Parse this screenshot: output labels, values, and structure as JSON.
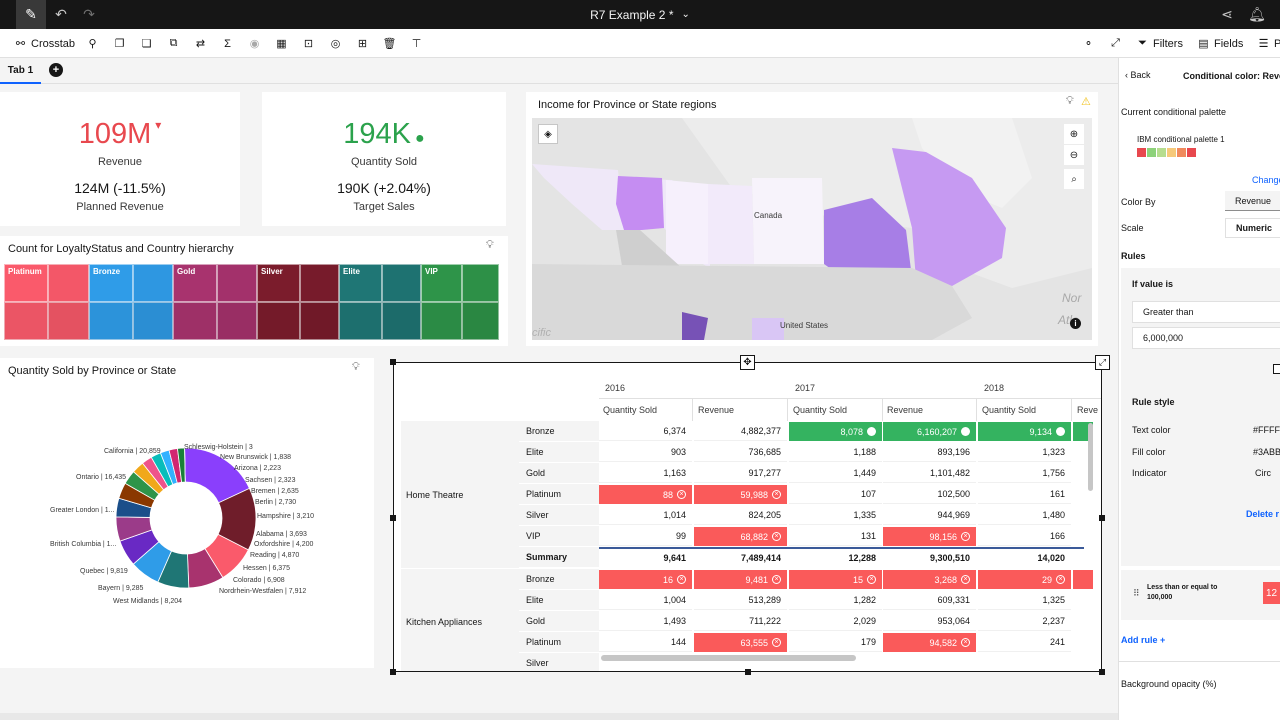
{
  "topbar": {
    "title": "R7 Example 2 *",
    "icons": [
      "edit-icon",
      "undo-icon",
      "redo-icon",
      "share-icon",
      "notification-icon"
    ]
  },
  "toolbar": {
    "crosstab_label": "Crosstab",
    "filters_label": "Filters",
    "fields_label": "Fields",
    "properties_label": "P"
  },
  "tabs": [
    {
      "label": "Tab 1"
    }
  ],
  "kpis": [
    {
      "value": "109M",
      "value_color": "#e8484e",
      "indicator": "▾",
      "label": "Revenue",
      "sub": "124M (-11.5%)",
      "sub_label": "Planned Revenue"
    },
    {
      "value": "194K",
      "value_color": "#2ba24c",
      "indicator": "●",
      "label": "Quantity Sold",
      "sub": "190K (+2.04%)",
      "sub_label": "Target Sales"
    }
  ],
  "map": {
    "title": "Income for Province or State regions",
    "labels": {
      "canada": "Canada",
      "us": "United States",
      "corner1": "Nor",
      "corner2": "Atla",
      "corner3": "cific"
    }
  },
  "treemap": {
    "title": "Count for LoyaltyStatus and Country hierarchy",
    "groups": [
      {
        "label": "Platinum",
        "color": "#fa5a6b"
      },
      {
        "label": "Bronze",
        "color": "#2f9ce8"
      },
      {
        "label": "Gold",
        "color": "#a8336e"
      },
      {
        "label": "Silver",
        "color": "#7b1c2c"
      },
      {
        "label": "Elite",
        "color": "#1f7675"
      },
      {
        "label": "VIP",
        "color": "#2e9449"
      }
    ]
  },
  "donut": {
    "title": "Quantity Sold by Province or State",
    "labels": [
      "California | 20,859",
      "Ontario | 16,435",
      "Greater London | 1...",
      "British Columbia | 1...",
      "Quebec | 9,819",
      "Bayern | 9,285",
      "West Midlands | 8,204",
      "Schleswig-Holstein | 3",
      "New Brunswick | 1,838",
      "Arizona | 2,223",
      "Sachsen | 2,323",
      "Bremen | 2,635",
      "Berlin | 2,730",
      "Hampshire | 3,210",
      "Alabama | 3,693",
      "Oxfordshire | 4,200",
      "Reading | 4,870",
      "Hessen | 6,375",
      "Colorado | 6,908",
      "Nordrhein-Westfalen | 7,912"
    ]
  },
  "chart_data": {
    "type": "pie",
    "title": "Quantity Sold by Province or State",
    "categories": [
      "California",
      "Ontario",
      "Quebec",
      "Bayern",
      "West Midlands",
      "Nordrhein-Westfalen",
      "Colorado",
      "Hessen",
      "Reading",
      "Oxfordshire",
      "Alabama",
      "Hampshire",
      "Berlin",
      "Bremen",
      "Sachsen",
      "Arizona",
      "New Brunswick",
      "Schleswig-Holstein"
    ],
    "values": [
      20859,
      16435,
      9819,
      9285,
      8204,
      7912,
      6908,
      6375,
      4870,
      4200,
      3693,
      3210,
      2730,
      2635,
      2323,
      2223,
      1838,
      3
    ]
  },
  "crosstab": {
    "years": [
      "2016",
      "2017",
      "2018"
    ],
    "measures": [
      "Quantity Sold",
      "Revenue",
      "Quantity Sold",
      "Revenue",
      "Quantity Sold",
      "Reve"
    ],
    "groups": [
      {
        "name": "Home Theatre",
        "rows": [
          {
            "label": "Bronze",
            "values": [
              "6,374",
              "4,882,377",
              "8,078",
              "6,160,207",
              "9,134"
            ],
            "styles": [
              "",
              "",
              "green",
              "green",
              "green"
            ]
          },
          {
            "label": "Elite",
            "values": [
              "903",
              "736,685",
              "1,188",
              "893,196",
              "1,323"
            ],
            "styles": [
              "",
              "",
              "",
              "",
              ""
            ]
          },
          {
            "label": "Gold",
            "values": [
              "1,163",
              "917,277",
              "1,449",
              "1,101,482",
              "1,756"
            ],
            "styles": [
              "",
              "",
              "",
              "",
              ""
            ]
          },
          {
            "label": "Platinum",
            "values": [
              "88",
              "59,988",
              "107",
              "102,500",
              "161"
            ],
            "styles": [
              "red",
              "red",
              "",
              "",
              ""
            ]
          },
          {
            "label": "Silver",
            "values": [
              "1,014",
              "824,205",
              "1,335",
              "944,969",
              "1,480"
            ],
            "styles": [
              "",
              "",
              "",
              "",
              ""
            ]
          },
          {
            "label": "VIP",
            "values": [
              "99",
              "68,882",
              "131",
              "98,156",
              "166"
            ],
            "styles": [
              "",
              "red",
              "",
              "red",
              ""
            ]
          },
          {
            "label": "Summary",
            "values": [
              "9,641",
              "7,489,414",
              "12,288",
              "9,300,510",
              "14,020"
            ],
            "styles": [
              "bold",
              "bold",
              "bold",
              "bold",
              "bold"
            ]
          }
        ]
      },
      {
        "name": "Kitchen Appliances",
        "rows": [
          {
            "label": "Bronze",
            "values": [
              "16",
              "9,481",
              "15",
              "3,268",
              "29"
            ],
            "styles": [
              "red",
              "red",
              "red",
              "red",
              "red"
            ]
          },
          {
            "label": "Elite",
            "values": [
              "1,004",
              "513,289",
              "1,282",
              "609,331",
              "1,325"
            ],
            "styles": [
              "",
              "",
              "",
              "",
              ""
            ]
          },
          {
            "label": "Gold",
            "values": [
              "1,493",
              "711,222",
              "2,029",
              "953,064",
              "2,237"
            ],
            "styles": [
              "",
              "",
              "",
              "",
              ""
            ]
          },
          {
            "label": "Platinum",
            "values": [
              "144",
              "63,555",
              "179",
              "94,582",
              "241"
            ],
            "styles": [
              "",
              "red",
              "",
              "red",
              ""
            ]
          },
          {
            "label": "Silver",
            "values": [
              "",
              "",
              "",
              "",
              ""
            ],
            "styles": [
              "",
              "",
              "",
              "",
              ""
            ]
          }
        ]
      }
    ]
  },
  "panel": {
    "back_label": "Back",
    "header": "Conditional color: Reve",
    "current_palette_label": "Current conditional palette",
    "palette_name": "IBM conditional palette 1",
    "palette_colors": [
      "#e8484e",
      "#8dd27a",
      "#b6dd8e",
      "#f6c97a",
      "#f08a5d",
      "#e8484e"
    ],
    "change_label": "Change",
    "color_by_label": "Color By",
    "color_by_value": "Revenue",
    "scale_label": "Scale",
    "scale_value": "Numeric",
    "rules_label": "Rules",
    "if_value_label": "If value is",
    "condition_value": "Greater than",
    "threshold_value": "6,000,000",
    "rule_style_label": "Rule style",
    "text_color_label": "Text color",
    "text_color_value": "#FFFF",
    "fill_color_label": "Fill color",
    "fill_color_value": "#3ABB",
    "indicator_label": "Indicator",
    "indicator_value": "Circ",
    "delete_label": "Delete r",
    "rule2_label_line1": "Less than or equal to",
    "rule2_label_line2": "100,000",
    "rule2_swatch": "12",
    "add_rule_label": "Add rule",
    "bg_opacity_label": "Background opacity (%)"
  }
}
